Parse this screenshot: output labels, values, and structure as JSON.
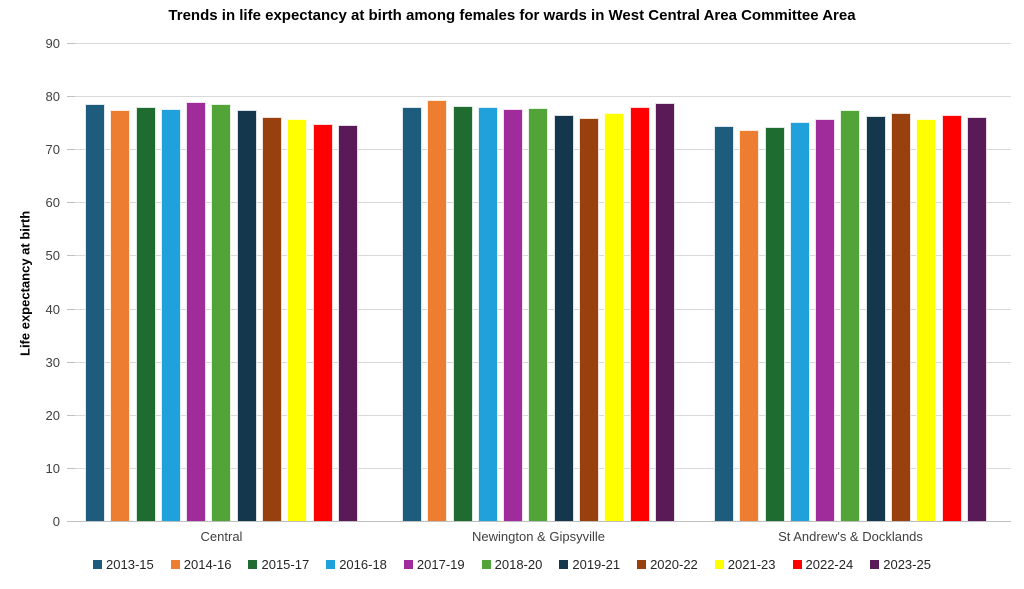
{
  "chart_data": {
    "type": "bar",
    "title": "Trends in life expectancy at birth among females for wards in West Central Area Committee Area",
    "xlabel": "",
    "ylabel": "Life expectancy at birth",
    "ylim": [
      0,
      90
    ],
    "yticks": [
      0,
      10,
      20,
      30,
      40,
      50,
      60,
      70,
      80,
      90
    ],
    "grid": true,
    "legend_position": "bottom",
    "categories": [
      "Central",
      "Newington & Gipsyville",
      "St Andrew's & Docklands"
    ],
    "series": [
      {
        "name": "2013-15",
        "color": "#1E5C7E",
        "values": [
          78.5,
          78.0,
          74.4
        ]
      },
      {
        "name": "2014-16",
        "color": "#ED7D31",
        "values": [
          77.4,
          79.2,
          73.7
        ]
      },
      {
        "name": "2015-17",
        "color": "#1E6C30",
        "values": [
          77.9,
          78.1,
          74.2
        ]
      },
      {
        "name": "2016-18",
        "color": "#21A1DC",
        "values": [
          77.6,
          78.0,
          75.2
        ]
      },
      {
        "name": "2017-19",
        "color": "#A02C9C",
        "values": [
          78.9,
          77.6,
          75.6
        ]
      },
      {
        "name": "2018-20",
        "color": "#52A338",
        "values": [
          78.5,
          77.8,
          77.3
        ]
      },
      {
        "name": "2019-21",
        "color": "#14374E",
        "values": [
          77.3,
          76.4,
          76.3
        ]
      },
      {
        "name": "2020-22",
        "color": "#99400F",
        "values": [
          76.1,
          75.9,
          76.8
        ]
      },
      {
        "name": "2021-23",
        "color": "#FFFF00",
        "values": [
          75.7,
          76.8,
          75.7
        ]
      },
      {
        "name": "2022-24",
        "color": "#FF0000",
        "values": [
          74.7,
          77.9,
          76.5
        ]
      },
      {
        "name": "2023-25",
        "color": "#5A1A58",
        "values": [
          74.5,
          78.8,
          76.0
        ]
      }
    ],
    "colors": {
      "gridline": "#D9D9D9",
      "axis_line": "#BFBFBF",
      "tick_label": "#404040",
      "title": "#000000"
    }
  }
}
